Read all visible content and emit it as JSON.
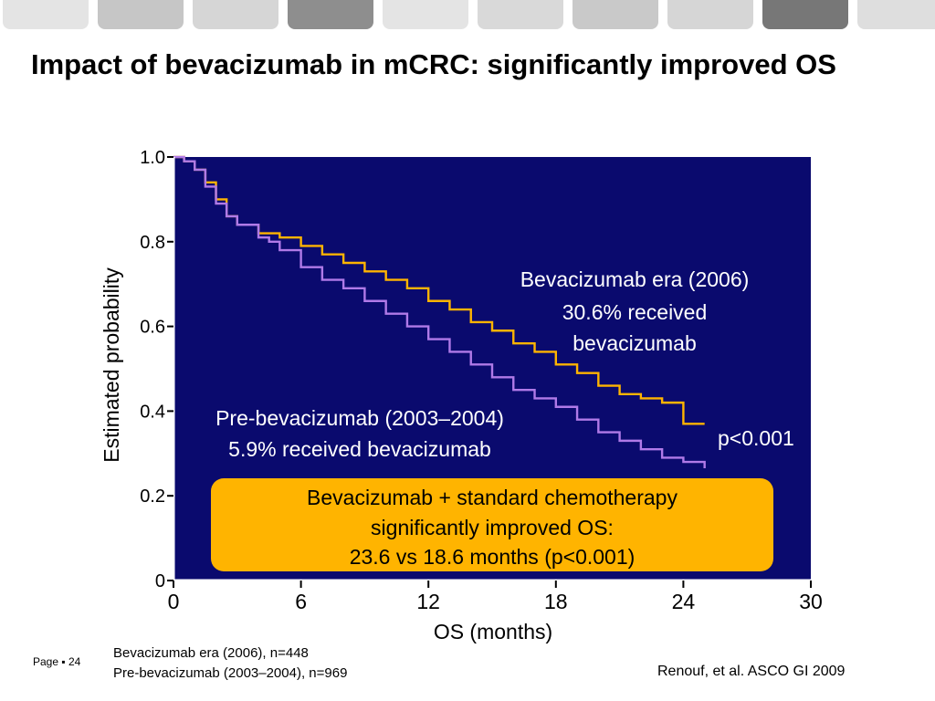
{
  "tabs": [
    {
      "color": "#e4e4e4"
    },
    {
      "color": "#c6c6c6"
    },
    {
      "color": "#d6d6d6"
    },
    {
      "color": "#8e8e8e"
    },
    {
      "color": "#e4e4e4"
    },
    {
      "color": "#d9d9d9"
    },
    {
      "color": "#c9c9c9"
    },
    {
      "color": "#d6d6d6"
    },
    {
      "color": "#777777"
    },
    {
      "color": "#dedede"
    }
  ],
  "slide": {
    "title": "Impact of bevacizumab in mCRC: significantly improved OS",
    "page_label": "Page",
    "page_number": "24",
    "footnotes": [
      "Bevacizumab era (2006), n=448",
      "Pre-bevacizumab (2003–2004), n=969"
    ],
    "citation": "Renouf, et al. ASCO GI 2009"
  },
  "chart_data": {
    "type": "line",
    "xlabel": "OS (months)",
    "ylabel": "Estimated probability",
    "xlim": [
      0,
      30
    ],
    "ylim": [
      0,
      1
    ],
    "x_ticks": [
      0,
      6,
      12,
      18,
      24,
      30
    ],
    "y_ticks": [
      0,
      0.2,
      0.4,
      0.6,
      0.8,
      1.0
    ],
    "y_tick_labels": [
      "0",
      "0.2",
      "0.4",
      "0.6",
      "0.8",
      "1.0"
    ],
    "background_color": "#0a0a6e",
    "series": [
      {
        "name": "Bevacizumab era (2006)",
        "color": "#ffb400",
        "x": [
          0,
          0.5,
          1,
          1.5,
          2,
          2.5,
          3,
          4,
          5,
          6,
          7,
          8,
          9,
          10,
          11,
          12,
          13,
          14,
          15,
          16,
          17,
          18,
          19,
          20,
          21,
          22,
          23,
          24,
          25
        ],
        "y": [
          1.0,
          0.99,
          0.97,
          0.94,
          0.9,
          0.86,
          0.84,
          0.82,
          0.81,
          0.79,
          0.77,
          0.75,
          0.73,
          0.71,
          0.69,
          0.66,
          0.64,
          0.61,
          0.59,
          0.56,
          0.54,
          0.51,
          0.49,
          0.46,
          0.44,
          0.43,
          0.42,
          0.37,
          0.37
        ]
      },
      {
        "name": "Pre-bevacizumab (2003–2004)",
        "color": "#b07ae8",
        "x": [
          0,
          0.5,
          1,
          1.5,
          2,
          2.5,
          3,
          4,
          4.5,
          5,
          6,
          7,
          8,
          9,
          10,
          11,
          12,
          13,
          14,
          15,
          16,
          17,
          18,
          19,
          20,
          21,
          22,
          23,
          24,
          25
        ],
        "y": [
          1.0,
          0.99,
          0.97,
          0.93,
          0.89,
          0.86,
          0.84,
          0.81,
          0.8,
          0.78,
          0.74,
          0.71,
          0.69,
          0.66,
          0.63,
          0.6,
          0.57,
          0.54,
          0.51,
          0.48,
          0.45,
          0.43,
          0.41,
          0.38,
          0.35,
          0.33,
          0.31,
          0.29,
          0.28,
          0.265
        ]
      }
    ],
    "annotations": {
      "bev_label": [
        "Bevacizumab era (2006)",
        "30.6% received",
        "bevacizumab"
      ],
      "pre_label": [
        "Pre-bevacizumab (2003–2004)",
        "5.9% received bevacizumab"
      ],
      "pvalue": "p<0.001",
      "callout": [
        "Bevacizumab + standard chemotherapy",
        "significantly improved OS:",
        "23.6 vs 18.6 months (p<0.001)"
      ],
      "callout_color": "#ffb400"
    }
  }
}
